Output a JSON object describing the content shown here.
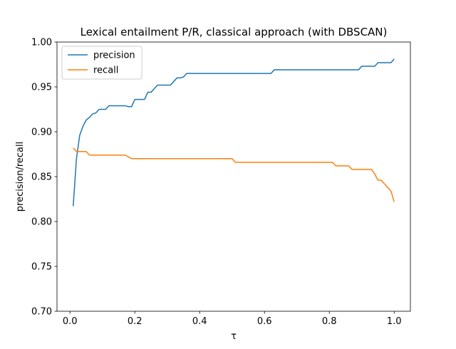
{
  "chart_data": {
    "type": "line",
    "title": "Lexical entailment P/R, classical approach (with DBSCAN)",
    "xlabel": "τ",
    "ylabel": "precision/recall",
    "xlim": [
      -0.04,
      1.05
    ],
    "ylim": [
      0.7,
      1.0
    ],
    "xticks": [
      0.0,
      0.2,
      0.4,
      0.6,
      0.8,
      1.0
    ],
    "xtick_labels": [
      "0.0",
      "0.2",
      "0.4",
      "0.6",
      "0.8",
      "1.0"
    ],
    "yticks": [
      0.7,
      0.75,
      0.8,
      0.85,
      0.9,
      0.95,
      1.0
    ],
    "ytick_labels": [
      "0.70",
      "0.75",
      "0.80",
      "0.85",
      "0.90",
      "0.95",
      "1.00"
    ],
    "grid": false,
    "legend_position": "upper-left",
    "series": [
      {
        "name": "precision",
        "color": "#1f77b4",
        "x": [
          0.01,
          0.02,
          0.03,
          0.04,
          0.05,
          0.06,
          0.07,
          0.08,
          0.09,
          0.1,
          0.11,
          0.12,
          0.13,
          0.14,
          0.15,
          0.16,
          0.17,
          0.18,
          0.19,
          0.2,
          0.21,
          0.22,
          0.23,
          0.24,
          0.25,
          0.26,
          0.27,
          0.28,
          0.29,
          0.3,
          0.31,
          0.32,
          0.33,
          0.34,
          0.35,
          0.36,
          0.37,
          0.4,
          0.45,
          0.5,
          0.51,
          0.55,
          0.6,
          0.62,
          0.63,
          0.65,
          0.7,
          0.75,
          0.8,
          0.81,
          0.82,
          0.85,
          0.89,
          0.9,
          0.92,
          0.93,
          0.94,
          0.95,
          0.97,
          0.99,
          1.0
        ],
        "y": [
          0.817,
          0.87,
          0.896,
          0.906,
          0.913,
          0.916,
          0.92,
          0.921,
          0.925,
          0.925,
          0.925,
          0.929,
          0.929,
          0.929,
          0.929,
          0.929,
          0.929,
          0.928,
          0.928,
          0.936,
          0.936,
          0.936,
          0.936,
          0.944,
          0.944,
          0.948,
          0.952,
          0.952,
          0.952,
          0.952,
          0.952,
          0.956,
          0.96,
          0.96,
          0.961,
          0.965,
          0.965,
          0.965,
          0.965,
          0.965,
          0.965,
          0.965,
          0.965,
          0.965,
          0.969,
          0.969,
          0.969,
          0.969,
          0.969,
          0.969,
          0.969,
          0.969,
          0.969,
          0.973,
          0.973,
          0.973,
          0.973,
          0.977,
          0.977,
          0.977,
          0.981
        ]
      },
      {
        "name": "recall",
        "color": "#ff7f0e",
        "x": [
          0.01,
          0.02,
          0.03,
          0.04,
          0.05,
          0.06,
          0.07,
          0.1,
          0.15,
          0.17,
          0.18,
          0.19,
          0.2,
          0.25,
          0.3,
          0.35,
          0.4,
          0.45,
          0.49,
          0.5,
          0.51,
          0.55,
          0.6,
          0.65,
          0.7,
          0.75,
          0.8,
          0.81,
          0.82,
          0.83,
          0.84,
          0.85,
          0.86,
          0.87,
          0.88,
          0.9,
          0.92,
          0.93,
          0.94,
          0.95,
          0.96,
          0.97,
          0.98,
          0.99,
          1.0
        ],
        "y": [
          0.882,
          0.878,
          0.878,
          0.878,
          0.878,
          0.874,
          0.874,
          0.874,
          0.874,
          0.874,
          0.872,
          0.87,
          0.87,
          0.87,
          0.87,
          0.87,
          0.87,
          0.87,
          0.87,
          0.87,
          0.866,
          0.866,
          0.866,
          0.866,
          0.866,
          0.866,
          0.866,
          0.866,
          0.862,
          0.862,
          0.862,
          0.862,
          0.862,
          0.858,
          0.858,
          0.858,
          0.858,
          0.858,
          0.853,
          0.846,
          0.846,
          0.842,
          0.838,
          0.834,
          0.822
        ]
      }
    ]
  }
}
